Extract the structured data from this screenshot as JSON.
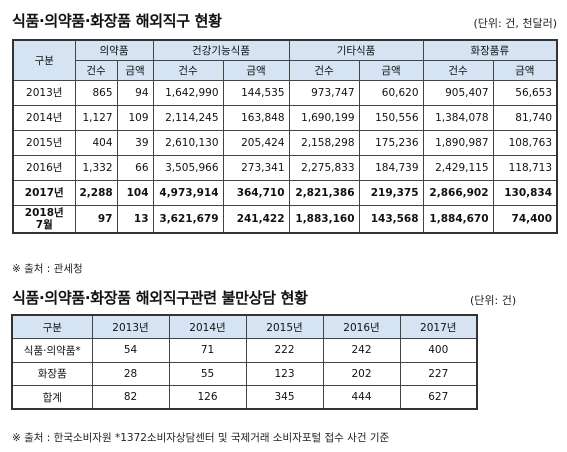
{
  "table1": {
    "title": "식품·의약품·화장품 해외직구 현황",
    "unit": "(단위: 건, 천달러)",
    "row_header": "구분",
    "groups": [
      "의약품",
      "건강기능식품",
      "기타식품",
      "화장품류"
    ],
    "subheaders": [
      "건수",
      "금액"
    ],
    "rows": [
      {
        "label": "2013년",
        "values": [
          "865",
          "94",
          "1,642,990",
          "144,535",
          "973,747",
          "60,620",
          "905,407",
          "56,653"
        ]
      },
      {
        "label": "2014년",
        "values": [
          "1,127",
          "109",
          "2,114,245",
          "163,848",
          "1,690,199",
          "150,556",
          "1,384,078",
          "81,740"
        ]
      },
      {
        "label": "2015년",
        "values": [
          "404",
          "39",
          "2,610,130",
          "205,424",
          "2,158,298",
          "175,236",
          "1,890,987",
          "108,763"
        ]
      },
      {
        "label": "2016년",
        "values": [
          "1,332",
          "66",
          "3,505,966",
          "273,341",
          "2,275,833",
          "184,739",
          "2,429,115",
          "118,713"
        ]
      },
      {
        "label": "2017년",
        "values": [
          "2,288",
          "104",
          "4,973,914",
          "364,710",
          "2,821,386",
          "219,375",
          "2,866,902",
          "130,834"
        ]
      },
      {
        "label_line1": "2018년",
        "label_line2": "7월",
        "values": [
          "97",
          "13",
          "3,621,679",
          "241,422",
          "1,883,160",
          "143,568",
          "1,884,670",
          "74,400"
        ]
      }
    ],
    "source": "※ 출처 : 관세청"
  },
  "table2": {
    "title": "식품·의약품·화장품 해외직구관련 불만상담 현황",
    "unit": "(단위: 건)",
    "header": [
      "구분",
      "2013년",
      "2014년",
      "2015년",
      "2016년",
      "2017년"
    ],
    "rows": [
      {
        "label": "식품·의약품*",
        "values": [
          "54",
          "71",
          "222",
          "242",
          "400"
        ]
      },
      {
        "label": "화장품",
        "values": [
          "28",
          "55",
          "123",
          "202",
          "227"
        ]
      },
      {
        "label": "합계",
        "values": [
          "82",
          "126",
          "345",
          "444",
          "627"
        ]
      }
    ],
    "source": "※ 출처 : 한국소비자원 *1372소비자상담센터 및 국제거래 소비자포털 접수 사건 기준"
  }
}
